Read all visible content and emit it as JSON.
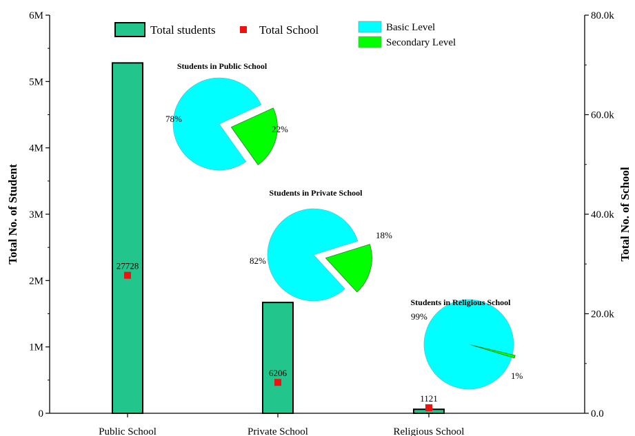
{
  "chart_data": {
    "type": "bar",
    "categories": [
      "Public School",
      "Private School",
      "Religious School"
    ],
    "y_left": {
      "label": "Total No. of Student",
      "range": [
        0,
        6000000
      ],
      "ticks": [
        "0",
        "1M",
        "2M",
        "3M",
        "4M",
        "5M",
        "6M"
      ]
    },
    "y_right": {
      "label": "Total No. of School",
      "range": [
        0,
        80000
      ],
      "ticks": [
        "0.0",
        "20.0k",
        "40.0k",
        "60.0k",
        "80.0k"
      ]
    },
    "series": [
      {
        "name": "Total students",
        "type": "bar",
        "axis": "left",
        "color": "#22C58B",
        "values": [
          5280000,
          1670000,
          60000
        ]
      },
      {
        "name": "Total School",
        "type": "scatter",
        "axis": "right",
        "color": "#EE1111",
        "values": [
          27728,
          6206,
          1121
        ]
      }
    ],
    "data_labels": [
      "27728",
      "6206",
      "1121"
    ],
    "pie_legend": [
      {
        "name": "Basic Level",
        "color": "#00FFFF"
      },
      {
        "name": "Secondary Level",
        "color": "#00FF00"
      }
    ],
    "pies": [
      {
        "title": "Students in Public School",
        "values": [
          78,
          22
        ],
        "labels": [
          "78%",
          "22%"
        ]
      },
      {
        "title": "Students in Private School",
        "values": [
          82,
          18
        ],
        "labels": [
          "82%",
          "18%"
        ]
      },
      {
        "title": "Students in Religious School",
        "values": [
          99,
          1
        ],
        "labels": [
          "99%",
          "1%"
        ]
      }
    ],
    "grid": false,
    "legend_position": "top"
  }
}
